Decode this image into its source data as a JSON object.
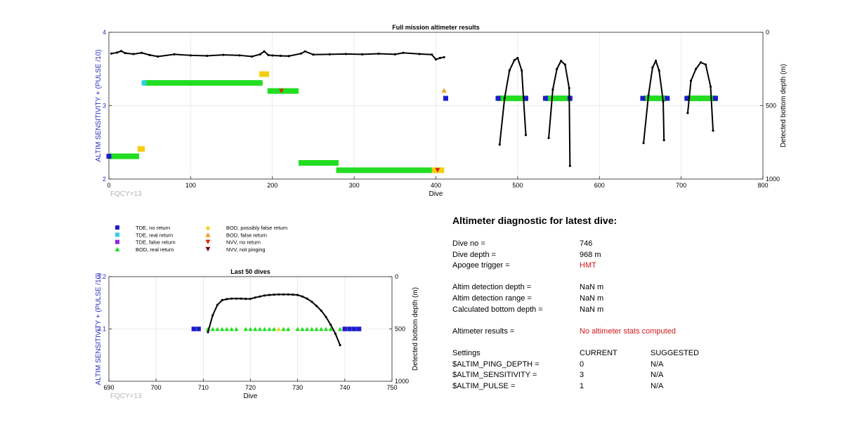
{
  "colors": {
    "tde_no": "#1c1ccc",
    "tde_real": "#33ccee",
    "tde_false": "#8a2be2",
    "bod_real": "#22dd22",
    "bod_possibly_false": "#f4cd12",
    "bod_false": "#f39c12",
    "nvv_no": "#dd2200",
    "nvv_not": "#7a0000",
    "axis_left": "#2b2bbf",
    "alert": "#d01a1a"
  },
  "legend": {
    "items": [
      {
        "label": "TDE, no return",
        "marker": "square",
        "color": "#1c1ccc"
      },
      {
        "label": "TDE, real return",
        "marker": "square",
        "color": "#33ccee"
      },
      {
        "label": "TDE, false return",
        "marker": "square",
        "color": "#8a2be2"
      },
      {
        "label": "BOD, real return",
        "marker": "triangle-up",
        "color": "#22dd22"
      },
      {
        "label": "BOD, possibly false return",
        "marker": "triangle-up",
        "color": "#f4cd12"
      },
      {
        "label": "BOD, false return",
        "marker": "triangle-up",
        "color": "#f39c12"
      },
      {
        "label": "NVV, no return",
        "marker": "triangle-down",
        "color": "#dd2200"
      },
      {
        "label": "NVV, not pinging",
        "marker": "triangle-down",
        "color": "#7a0000"
      }
    ]
  },
  "chart_data": [
    {
      "type": "scatter",
      "title": "Full mission altimeter results",
      "xlabel": "Dive",
      "ylabel": "ALTIM SENSITIVITY + (PULSE /10)",
      "y2label": "Detected bottom depth (m)",
      "xlim": [
        0,
        800
      ],
      "ylim": [
        2,
        4
      ],
      "y2lim": [
        1000,
        0
      ],
      "xticks": [
        "0",
        "100",
        "200",
        "300",
        "400",
        "500",
        "600",
        "700",
        "800"
      ],
      "yticks": [
        "2",
        "3",
        "4"
      ],
      "y2ticks": [
        "1000",
        "500",
        "0"
      ],
      "grid": true,
      "annotation": "FQCY=13",
      "segments": [
        {
          "x0": 0,
          "x1": 37,
          "y": 2.31,
          "kind": "bod_real"
        },
        {
          "x0": 35,
          "x1": 44,
          "y": 2.41,
          "kind": "bod_possibly_false"
        },
        {
          "x0": 42,
          "x1": 188,
          "y": 3.31,
          "kind": "bod_real"
        },
        {
          "x0": 184,
          "x1": 196,
          "y": 3.43,
          "kind": "bod_possibly_false"
        },
        {
          "x0": 194,
          "x1": 232,
          "y": 3.2,
          "kind": "bod_real"
        },
        {
          "x0": 232,
          "x1": 281,
          "y": 2.22,
          "kind": "bod_real"
        },
        {
          "x0": 278,
          "x1": 410,
          "y": 2.12,
          "kind": "bod_real"
        },
        {
          "x0": 395,
          "x1": 410,
          "y": 2.12,
          "kind": "bod_possibly_false"
        },
        {
          "x0": 475,
          "x1": 512,
          "y": 3.1,
          "kind": "bod_real"
        },
        {
          "x0": 534,
          "x1": 566,
          "y": 3.1,
          "kind": "bod_real"
        },
        {
          "x0": 654,
          "x1": 682,
          "y": 3.1,
          "kind": "bod_real"
        },
        {
          "x0": 707,
          "x1": 744,
          "y": 3.1,
          "kind": "bod_real"
        }
      ],
      "markers": [
        {
          "x": 0,
          "y": 2.31,
          "kind": "tde_no"
        },
        {
          "x": 43,
          "y": 3.31,
          "kind": "tde_real"
        },
        {
          "x": 211,
          "y": 3.2,
          "kind": "nvv_no"
        },
        {
          "x": 410,
          "y": 3.21,
          "kind": "bod_false"
        },
        {
          "x": 412,
          "y": 3.1,
          "kind": "tde_no"
        },
        {
          "x": 402,
          "y": 2.12,
          "kind": "nvv_no"
        },
        {
          "x": 476,
          "y": 3.1,
          "kind": "tde_no"
        },
        {
          "x": 510,
          "y": 3.1,
          "kind": "tde_no"
        },
        {
          "x": 534,
          "y": 3.1,
          "kind": "tde_no"
        },
        {
          "x": 564,
          "y": 3.1,
          "kind": "tde_no"
        },
        {
          "x": 653,
          "y": 3.1,
          "kind": "tde_no"
        },
        {
          "x": 683,
          "y": 3.1,
          "kind": "tde_no"
        },
        {
          "x": 707,
          "y": 3.1,
          "kind": "tde_no"
        },
        {
          "x": 742,
          "y": 3.1,
          "kind": "tde_no"
        }
      ],
      "depth_series": [
        {
          "name": "",
          "x": [
            3,
            10,
            15,
            20,
            30,
            40,
            50,
            60,
            80,
            100,
            120,
            140,
            160,
            175,
            185,
            190,
            195,
            200,
            210,
            220,
            235,
            240,
            250,
            270,
            290,
            310,
            330,
            350,
            360,
            380,
            395,
            400,
            405,
            410
          ],
          "y": [
            145,
            138,
            128,
            142,
            148,
            140,
            155,
            165,
            150,
            157,
            160,
            154,
            157,
            165,
            150,
            130,
            155,
            158,
            160,
            162,
            145,
            130,
            152,
            150,
            148,
            150,
            146,
            150,
            140,
            148,
            152,
            185,
            175,
            170
          ]
        },
        {
          "name": "",
          "x": [
            478,
            484,
            490,
            496,
            500,
            505,
            510
          ],
          "y": [
            765,
            450,
            260,
            190,
            175,
            260,
            700
          ]
        },
        {
          "name": "",
          "x": [
            538,
            543,
            548,
            553,
            558,
            563,
            564
          ],
          "y": [
            720,
            390,
            250,
            195,
            220,
            380,
            910
          ]
        },
        {
          "name": "",
          "x": [
            654,
            660,
            665,
            669,
            673,
            678,
            679
          ],
          "y": [
            755,
            430,
            240,
            195,
            260,
            470,
            735
          ]
        },
        {
          "name": "",
          "x": [
            708,
            712,
            718,
            724,
            730,
            736,
            739
          ],
          "y": [
            550,
            330,
            250,
            205,
            220,
            370,
            670
          ]
        }
      ]
    },
    {
      "type": "scatter",
      "title": "Last 50 dives",
      "xlabel": "Dive",
      "ylabel": "ALTIM SENSITIVITY + (PULSE /10)",
      "y2label": "Detected bottom depth (m)",
      "xlim": [
        690,
        750
      ],
      "ylim": [
        3.0,
        3.2
      ],
      "y2lim": [
        1000,
        0
      ],
      "xticks": [
        "690",
        "700",
        "710",
        "720",
        "730",
        "740",
        "750"
      ],
      "yticks": [
        "3.1",
        "3.2"
      ],
      "y2ticks": [
        "1000",
        "500",
        "0"
      ],
      "grid": true,
      "annotation": "FQCY=13",
      "points": [
        {
          "x": 708,
          "y": 3.1,
          "kind": "tde_no"
        },
        {
          "x": 709,
          "y": 3.1,
          "kind": "tde_no"
        },
        {
          "x": 711,
          "y": 3.1,
          "kind": "bod_real"
        },
        {
          "x": 712,
          "y": 3.1,
          "kind": "bod_real"
        },
        {
          "x": 713,
          "y": 3.1,
          "kind": "bod_real"
        },
        {
          "x": 714,
          "y": 3.1,
          "kind": "bod_real"
        },
        {
          "x": 715,
          "y": 3.1,
          "kind": "bod_real"
        },
        {
          "x": 716,
          "y": 3.1,
          "kind": "bod_real"
        },
        {
          "x": 717,
          "y": 3.1,
          "kind": "bod_real"
        },
        {
          "x": 719,
          "y": 3.1,
          "kind": "bod_real"
        },
        {
          "x": 720,
          "y": 3.1,
          "kind": "bod_real"
        },
        {
          "x": 721,
          "y": 3.1,
          "kind": "bod_real"
        },
        {
          "x": 722,
          "y": 3.1,
          "kind": "bod_real"
        },
        {
          "x": 723,
          "y": 3.1,
          "kind": "bod_real"
        },
        {
          "x": 724,
          "y": 3.1,
          "kind": "bod_real"
        },
        {
          "x": 725,
          "y": 3.1,
          "kind": "bod_real"
        },
        {
          "x": 726,
          "y": 3.1,
          "kind": "bod_possibly_false"
        },
        {
          "x": 727,
          "y": 3.1,
          "kind": "bod_real"
        },
        {
          "x": 728,
          "y": 3.1,
          "kind": "bod_real"
        },
        {
          "x": 730,
          "y": 3.1,
          "kind": "bod_real"
        },
        {
          "x": 731,
          "y": 3.1,
          "kind": "bod_real"
        },
        {
          "x": 732,
          "y": 3.1,
          "kind": "bod_real"
        },
        {
          "x": 733,
          "y": 3.1,
          "kind": "bod_real"
        },
        {
          "x": 734,
          "y": 3.1,
          "kind": "bod_real"
        },
        {
          "x": 735,
          "y": 3.1,
          "kind": "bod_real"
        },
        {
          "x": 736,
          "y": 3.1,
          "kind": "bod_real"
        },
        {
          "x": 737,
          "y": 3.1,
          "kind": "bod_real"
        },
        {
          "x": 739,
          "y": 3.1,
          "kind": "bod_real"
        },
        {
          "x": 740,
          "y": 3.1,
          "kind": "tde_no"
        },
        {
          "x": 741,
          "y": 3.1,
          "kind": "tde_no"
        },
        {
          "x": 742,
          "y": 3.1,
          "kind": "tde_no"
        },
        {
          "x": 743,
          "y": 3.1,
          "kind": "tde_no"
        }
      ],
      "depth_series": [
        {
          "name": "",
          "x": [
            711,
            712,
            713,
            714,
            715,
            716,
            717,
            718,
            719,
            720,
            721,
            722,
            723,
            724,
            725,
            726,
            727,
            728,
            729,
            730,
            731,
            732,
            733,
            734,
            735,
            736,
            737,
            738,
            739
          ],
          "y": [
            530,
            370,
            270,
            225,
            215,
            210,
            210,
            210,
            212,
            212,
            200,
            190,
            180,
            175,
            172,
            170,
            170,
            170,
            172,
            175,
            190,
            210,
            240,
            280,
            325,
            385,
            460,
            545,
            655
          ]
        }
      ]
    }
  ],
  "diagnostic": {
    "title": "Altimeter diagnostic for latest dive:",
    "dive_no_label": "Dive no =",
    "dive_no": "746",
    "dive_depth_label": "Dive depth =",
    "dive_depth": "968 m",
    "apogee_label": "Apogee trigger =",
    "apogee": "HMT",
    "altim_detection_depth_label": "Altim detection depth =",
    "altim_detection_depth": "NaN m",
    "altim_detection_range_label": "Altim detection range =",
    "altim_detection_range": "NaN m",
    "calculated_bottom_label": "Calculated bottom depth =",
    "calculated_bottom": "NaN m",
    "altimeter_results_label": "Altimeter results =",
    "altimeter_results": "No altimeter stats computed",
    "settings_label": "Settings",
    "current_label": "CURRENT",
    "suggested_label": "SUGGESTED",
    "settings": [
      {
        "name": "$ALTIM_PING_DEPTH =",
        "current": "0",
        "suggested": "N/A"
      },
      {
        "name": "$ALTIM_SENSITIVITY =",
        "current": "3",
        "suggested": "N/A"
      },
      {
        "name": "$ALTIM_PULSE =",
        "current": "1",
        "suggested": "N/A"
      }
    ]
  }
}
